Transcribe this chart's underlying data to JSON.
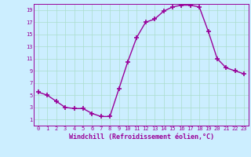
{
  "x": [
    0,
    1,
    2,
    3,
    4,
    5,
    6,
    7,
    8,
    9,
    10,
    11,
    12,
    13,
    14,
    15,
    16,
    17,
    18,
    19,
    20,
    21,
    22,
    23
  ],
  "y": [
    5.5,
    5.0,
    4.0,
    3.0,
    2.8,
    2.8,
    2.0,
    1.5,
    1.5,
    6.0,
    10.5,
    14.5,
    17.0,
    17.5,
    18.8,
    19.5,
    19.8,
    19.8,
    19.5,
    15.5,
    11.0,
    9.5,
    9.0,
    8.5
  ],
  "line_color": "#990099",
  "marker": "+",
  "marker_size": 4,
  "bg_color": "#cceeff",
  "grid_color": "#aaddcc",
  "xlabel": "Windchill (Refroidissement éolien,°C)",
  "xlabel_color": "#990099",
  "tick_color": "#990099",
  "xlim": [
    -0.5,
    23.5
  ],
  "ylim": [
    0,
    20
  ],
  "yticks": [
    1,
    3,
    5,
    7,
    9,
    11,
    13,
    15,
    17,
    19
  ],
  "xticks": [
    0,
    1,
    2,
    3,
    4,
    5,
    6,
    7,
    8,
    9,
    10,
    11,
    12,
    13,
    14,
    15,
    16,
    17,
    18,
    19,
    20,
    21,
    22,
    23
  ]
}
